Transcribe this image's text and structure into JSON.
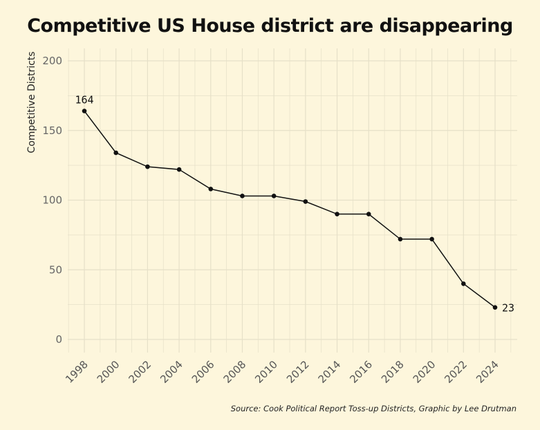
{
  "chart_data": {
    "type": "line",
    "title": "Competitive US House district are disappearing",
    "ylabel": "Competitive Districts",
    "xlabel": "",
    "ylim": [
      0,
      200
    ],
    "yticks": [
      0,
      50,
      100,
      150,
      200
    ],
    "x": [
      1998,
      2000,
      2002,
      2004,
      2006,
      2008,
      2010,
      2012,
      2014,
      2016,
      2018,
      2020,
      2022,
      2024
    ],
    "series": [
      {
        "values": [
          164,
          134,
          124,
          122,
          108,
          103,
          103,
          99,
          90,
          90,
          72,
          72,
          40,
          23
        ],
        "color": "#111111"
      }
    ],
    "annotations": [
      {
        "x": 1998,
        "y": 164,
        "text": "164"
      },
      {
        "x": 2024,
        "y": 23,
        "text": "23"
      }
    ],
    "grid": true,
    "legend": "none",
    "source": "Source: Cook Political Report Toss-up Districts, Graphic by Lee Drutman"
  },
  "colors": {
    "background": "#fdf6dc",
    "grid": "#e6e0c8",
    "line": "#111111"
  }
}
